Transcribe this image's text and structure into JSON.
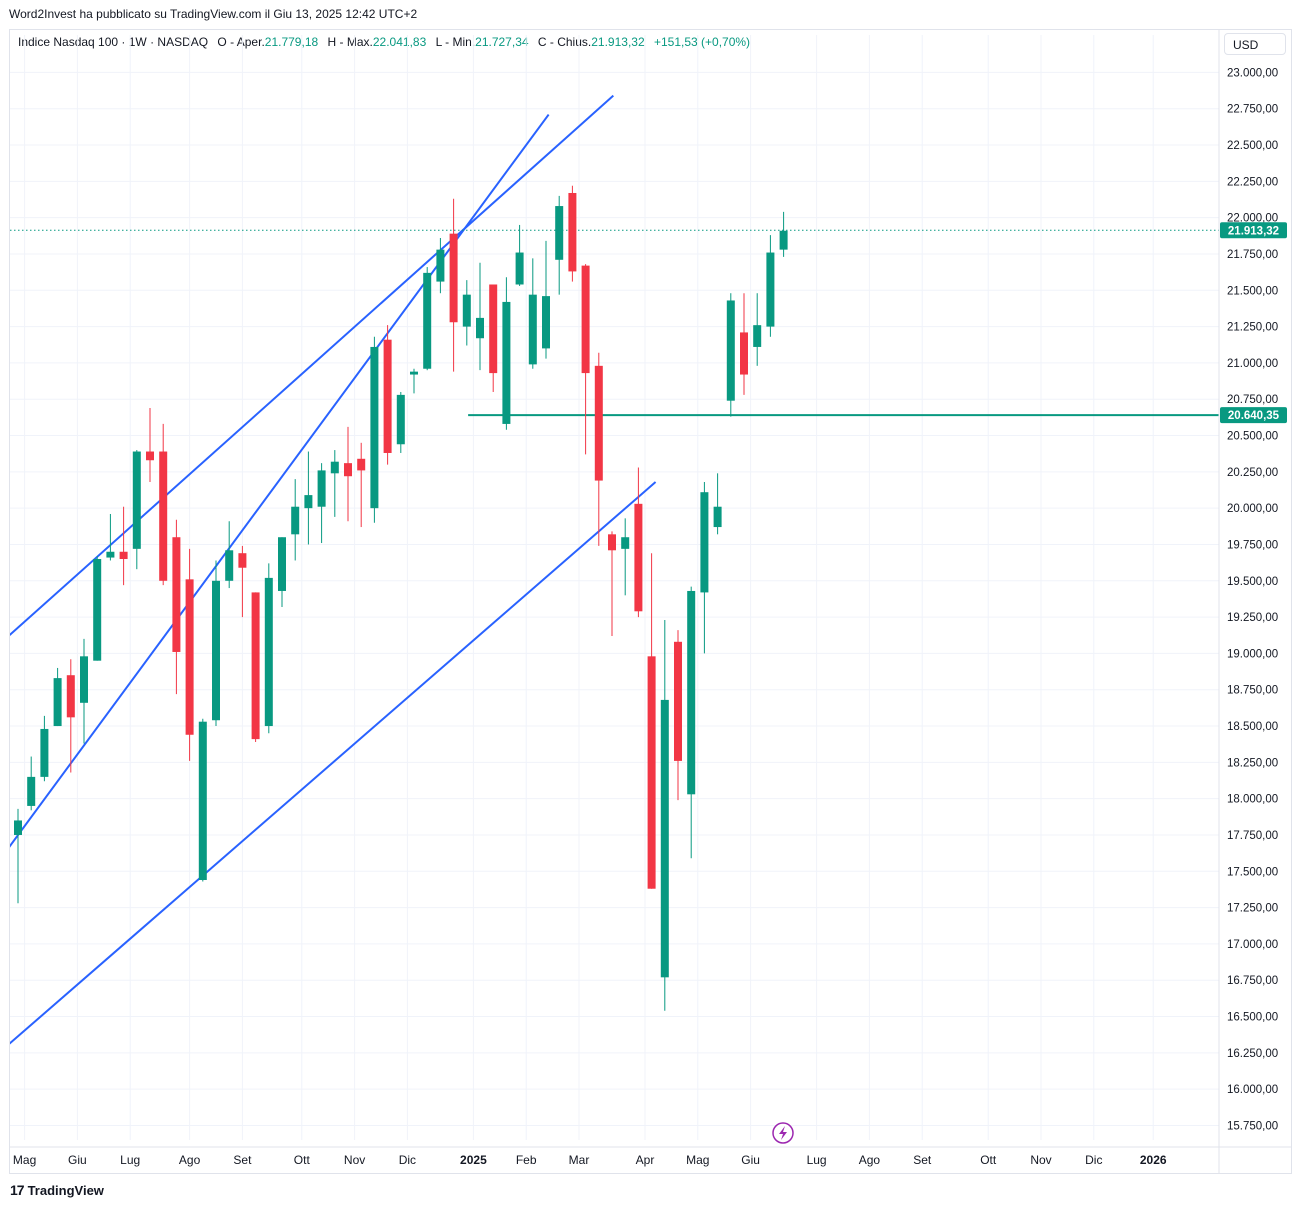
{
  "header": {
    "caption": "Word2Invest ha pubblicato su TradingView.com il Giu 13, 2025 12:42 UTC+2"
  },
  "legend": {
    "symbol": "Indice Nasdaq 100 · 1W · NASDAQ",
    "open_label": "O - Aper.",
    "open_value": "21.779,18",
    "high_label": "H - Max.",
    "high_value": "22.041,83",
    "low_label": "L - Min.",
    "low_value": "21.727,34",
    "close_label": "C - Chius.",
    "close_value": "21.913,32",
    "change": "+151,53 (+0,70%)"
  },
  "currency_label": "USD",
  "footer": {
    "brand": "TradingView",
    "logo_glyph": "17"
  },
  "colors": {
    "up": "#089981",
    "down": "#f23645",
    "trendline": "#2962ff",
    "level": "#089981",
    "grid": "#f0f3fa",
    "axis_text": "#131722"
  },
  "chart_data": {
    "type": "candlestick",
    "title": "Indice Nasdaq 100 · 1W · NASDAQ",
    "currency": "USD",
    "ylim": [
      15650,
      23120
    ],
    "y_ticks": [
      15750,
      16000,
      16250,
      16500,
      16750,
      17000,
      17250,
      17500,
      17750,
      18000,
      18250,
      18500,
      18750,
      19000,
      19250,
      19500,
      19750,
      20000,
      20250,
      20500,
      20750,
      21000,
      21250,
      21500,
      21750,
      22000,
      22250,
      22500,
      22750,
      23000
    ],
    "y_tick_labels": [
      "15.750,00",
      "16.000,00",
      "16.250,00",
      "16.500,00",
      "16.750,00",
      "17.000,00",
      "17.250,00",
      "17.500,00",
      "17.750,00",
      "18.000,00",
      "18.250,00",
      "18.500,00",
      "18.750,00",
      "19.000,00",
      "19.250,00",
      "19.500,00",
      "19.750,00",
      "20.000,00",
      "20.250,00",
      "20.500,00",
      "20.750,00",
      "21.000,00",
      "21.250,00",
      "21.500,00",
      "21.750,00",
      "22.000,00",
      "22.250,00",
      "22.500,00",
      "22.750,00",
      "23.000,00"
    ],
    "x_labels": [
      {
        "label": "Mag",
        "week": 0.5,
        "bold": false
      },
      {
        "label": "Giu",
        "week": 4.5,
        "bold": false
      },
      {
        "label": "Lug",
        "week": 8.5,
        "bold": false
      },
      {
        "label": "Ago",
        "week": 13.0,
        "bold": false
      },
      {
        "label": "Set",
        "week": 17.0,
        "bold": false
      },
      {
        "label": "Ott",
        "week": 21.5,
        "bold": false
      },
      {
        "label": "Nov",
        "week": 25.5,
        "bold": false
      },
      {
        "label": "Dic",
        "week": 29.5,
        "bold": false
      },
      {
        "label": "2025",
        "week": 34.5,
        "bold": true
      },
      {
        "label": "Feb",
        "week": 38.5,
        "bold": false
      },
      {
        "label": "Mar",
        "week": 42.5,
        "bold": false
      },
      {
        "label": "Apr",
        "week": 47.5,
        "bold": false
      },
      {
        "label": "Mag",
        "week": 51.5,
        "bold": false
      },
      {
        "label": "Giu",
        "week": 55.5,
        "bold": false
      },
      {
        "label": "Lug",
        "week": 60.5,
        "bold": false
      },
      {
        "label": "Ago",
        "week": 64.5,
        "bold": false
      },
      {
        "label": "Set",
        "week": 68.5,
        "bold": false
      },
      {
        "label": "Ott",
        "week": 73.5,
        "bold": false
      },
      {
        "label": "Nov",
        "week": 77.5,
        "bold": false
      },
      {
        "label": "Dic",
        "week": 81.5,
        "bold": false
      },
      {
        "label": "2026",
        "week": 86.0,
        "bold": true
      }
    ],
    "candles": [
      {
        "o": 17750,
        "h": 17930,
        "l": 17280,
        "c": 17850
      },
      {
        "o": 17950,
        "h": 18290,
        "l": 17920,
        "c": 18150
      },
      {
        "o": 18150,
        "h": 18570,
        "l": 18120,
        "c": 18480
      },
      {
        "o": 18500,
        "h": 18900,
        "l": 18500,
        "c": 18830
      },
      {
        "o": 18850,
        "h": 18960,
        "l": 18180,
        "c": 18560
      },
      {
        "o": 18660,
        "h": 19100,
        "l": 18380,
        "c": 18980
      },
      {
        "o": 18950,
        "h": 19670,
        "l": 18950,
        "c": 19650
      },
      {
        "o": 19660,
        "h": 19960,
        "l": 19640,
        "c": 19700
      },
      {
        "o": 19700,
        "h": 20010,
        "l": 19470,
        "c": 19650
      },
      {
        "o": 19720,
        "h": 20400,
        "l": 19580,
        "c": 20390
      },
      {
        "o": 20390,
        "h": 20690,
        "l": 20180,
        "c": 20330
      },
      {
        "o": 20390,
        "h": 20580,
        "l": 19470,
        "c": 19500
      },
      {
        "o": 19800,
        "h": 19920,
        "l": 18720,
        "c": 19010
      },
      {
        "o": 19510,
        "h": 19720,
        "l": 18260,
        "c": 18440
      },
      {
        "o": 17440,
        "h": 18550,
        "l": 17430,
        "c": 18530
      },
      {
        "o": 18540,
        "h": 19640,
        "l": 18500,
        "c": 19500
      },
      {
        "o": 19500,
        "h": 19910,
        "l": 19450,
        "c": 19710
      },
      {
        "o": 19690,
        "h": 19740,
        "l": 19250,
        "c": 19590
      },
      {
        "o": 19420,
        "h": 19420,
        "l": 18390,
        "c": 18410
      },
      {
        "o": 18500,
        "h": 19620,
        "l": 18450,
        "c": 19520
      },
      {
        "o": 19430,
        "h": 19800,
        "l": 19320,
        "c": 19800
      },
      {
        "o": 19820,
        "h": 20200,
        "l": 19640,
        "c": 20010
      },
      {
        "o": 20000,
        "h": 20390,
        "l": 19750,
        "c": 20090
      },
      {
        "o": 20010,
        "h": 20310,
        "l": 19760,
        "c": 20260
      },
      {
        "o": 20240,
        "h": 20400,
        "l": 19940,
        "c": 20320
      },
      {
        "o": 20310,
        "h": 20560,
        "l": 19910,
        "c": 20220
      },
      {
        "o": 20340,
        "h": 20450,
        "l": 19870,
        "c": 20260
      },
      {
        "o": 20000,
        "h": 21180,
        "l": 19900,
        "c": 21110
      },
      {
        "o": 21160,
        "h": 21260,
        "l": 20300,
        "c": 20380
      },
      {
        "o": 20440,
        "h": 20800,
        "l": 20380,
        "c": 20780
      },
      {
        "o": 20920,
        "h": 20960,
        "l": 20790,
        "c": 20940
      },
      {
        "o": 20960,
        "h": 21660,
        "l": 20950,
        "c": 21620
      },
      {
        "o": 21560,
        "h": 21860,
        "l": 21480,
        "c": 21780
      },
      {
        "o": 21890,
        "h": 22130,
        "l": 20940,
        "c": 21280
      },
      {
        "o": 21250,
        "h": 21570,
        "l": 21120,
        "c": 21470
      },
      {
        "o": 21170,
        "h": 21690,
        "l": 20950,
        "c": 21310
      },
      {
        "o": 21540,
        "h": 21540,
        "l": 20800,
        "c": 20930
      },
      {
        "o": 20580,
        "h": 21590,
        "l": 20540,
        "c": 21420
      },
      {
        "o": 21540,
        "h": 21950,
        "l": 21530,
        "c": 21760
      },
      {
        "o": 20990,
        "h": 21720,
        "l": 20960,
        "c": 21470
      },
      {
        "o": 21100,
        "h": 21840,
        "l": 21030,
        "c": 21460
      },
      {
        "o": 21710,
        "h": 22150,
        "l": 21470,
        "c": 22080
      },
      {
        "o": 22170,
        "h": 22220,
        "l": 21560,
        "c": 21630
      },
      {
        "o": 21670,
        "h": 21680,
        "l": 20370,
        "c": 20930
      },
      {
        "o": 20980,
        "h": 21070,
        "l": 19740,
        "c": 20190
      },
      {
        "o": 19820,
        "h": 19840,
        "l": 19120,
        "c": 19710
      },
      {
        "o": 19720,
        "h": 19930,
        "l": 19400,
        "c": 19800
      },
      {
        "o": 20030,
        "h": 20280,
        "l": 19250,
        "c": 19290
      },
      {
        "o": 18980,
        "h": 19690,
        "l": 17380,
        "c": 17380
      },
      {
        "o": 16770,
        "h": 19230,
        "l": 16540,
        "c": 18680
      },
      {
        "o": 19080,
        "h": 19160,
        "l": 17990,
        "c": 18260
      },
      {
        "o": 18030,
        "h": 19460,
        "l": 17590,
        "c": 19430
      },
      {
        "o": 19420,
        "h": 20180,
        "l": 19000,
        "c": 20110
      },
      {
        "o": 19870,
        "h": 20240,
        "l": 19820,
        "c": 20010
      },
      {
        "o": 20740,
        "h": 21480,
        "l": 20630,
        "c": 21430
      },
      {
        "o": 21210,
        "h": 21480,
        "l": 20780,
        "c": 20920
      },
      {
        "o": 21110,
        "h": 21480,
        "l": 20980,
        "c": 21260
      },
      {
        "o": 21250,
        "h": 21880,
        "l": 21180,
        "c": 21760
      },
      {
        "o": 21780,
        "h": 22040,
        "l": 21730,
        "c": 21910
      }
    ],
    "trendlines": [
      {
        "name": "channel-upper-outer",
        "x1": -1.7,
        "y1": 19040,
        "x2": 45.1,
        "y2": 22840
      },
      {
        "name": "channel-upper-steep",
        "x1": -1.7,
        "y1": 17540,
        "x2": 40.2,
        "y2": 22710
      },
      {
        "name": "channel-lower",
        "x1": -1.7,
        "y1": 16230,
        "x2": 48.3,
        "y2": 20180
      }
    ],
    "levels": [
      {
        "value": 20640.35,
        "label": "20.640,35",
        "from_week": 34.1
      }
    ],
    "last_price": {
      "value": 21913.32,
      "label": "21.913,32"
    },
    "grid": true
  }
}
